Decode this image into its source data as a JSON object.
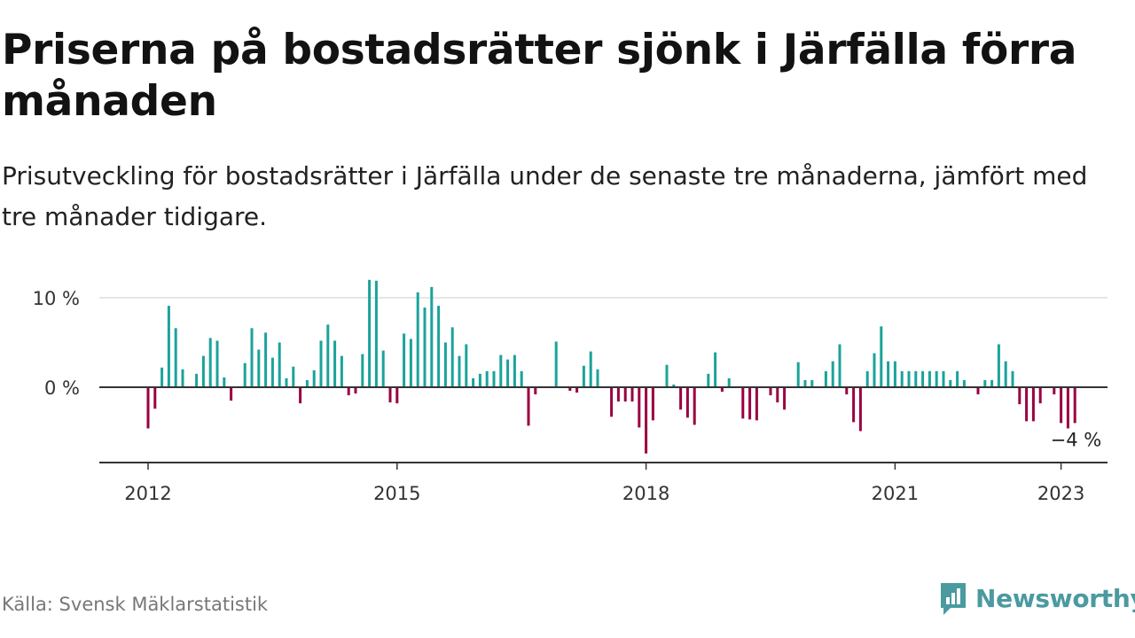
{
  "header": {
    "title": "Priserna på bostadsrätter sjönk i Järfälla förra månaden",
    "subtitle": "Prisutveckling för bostadsrätter i Järfälla under de senaste tre månaderna, jämfört med tre månader tidigare."
  },
  "footer": {
    "source": "Källa: Svensk Mäklarstatistik",
    "brand": "Newsworthy",
    "brand_icon": "bar-chart-logo-icon"
  },
  "colors": {
    "positive": "#1aa39b",
    "negative": "#990041",
    "axis": "#333333",
    "grid": "#dddddd"
  },
  "chart_data": {
    "type": "bar",
    "x_start": "2012-01",
    "x_end": "2023-02",
    "ylim": [
      -8.5,
      12
    ],
    "yticks": [
      0,
      10
    ],
    "ytick_labels": [
      "0 %",
      "10 %"
    ],
    "xticks": [
      "2012",
      "2015",
      "2018",
      "2021",
      "2023"
    ],
    "grid": "horizontal",
    "last_value_label": "−4 %",
    "series": [
      {
        "values": [
          -4.6,
          -2.4,
          2.2,
          9.1,
          6.6,
          2.0,
          0,
          1.5,
          3.5,
          5.5,
          5.2,
          1.1,
          -1.5,
          0,
          2.7,
          6.6,
          4.2,
          6.1,
          3.3,
          5.0,
          1.0,
          2.3,
          -1.8,
          0.8,
          1.9,
          5.2,
          7.0,
          5.2,
          3.5,
          -0.9,
          -0.7,
          3.7,
          12.0,
          11.9,
          4.1,
          -1.7,
          -1.8,
          6.0,
          5.4,
          10.6,
          8.9,
          11.2,
          9.1,
          5.0,
          6.7,
          3.5,
          4.8,
          1.0,
          1.5,
          1.8,
          1.8,
          3.6,
          3.1,
          3.6,
          1.8,
          -4.3,
          -0.8,
          0,
          0,
          5.1,
          0,
          -0.4,
          -0.6,
          2.4,
          4.0,
          2.0,
          0,
          -3.3,
          -1.6,
          -1.6,
          -1.6,
          -4.5,
          -7.4,
          -3.7,
          0,
          2.5,
          0.3,
          -2.5,
          -3.4,
          -4.2,
          0,
          1.5,
          3.9,
          -0.5,
          1.0,
          0,
          -3.5,
          -3.6,
          -3.7,
          0,
          -0.9,
          -1.7,
          -2.5,
          0,
          2.8,
          0.8,
          0.8,
          0,
          1.8,
          2.9,
          4.8,
          -0.8,
          -3.9,
          -4.9,
          1.8,
          3.8,
          6.8,
          2.9,
          2.9,
          1.8,
          1.8,
          1.8,
          1.8,
          1.8,
          1.8,
          1.8,
          0.8,
          1.8,
          0.8,
          0,
          -0.8,
          0.8,
          0.8,
          4.8,
          2.9,
          1.8,
          -1.9,
          -3.8,
          -3.8,
          -1.8,
          0,
          -0.8,
          -4.0,
          -4.6,
          -4.0
        ]
      }
    ]
  }
}
